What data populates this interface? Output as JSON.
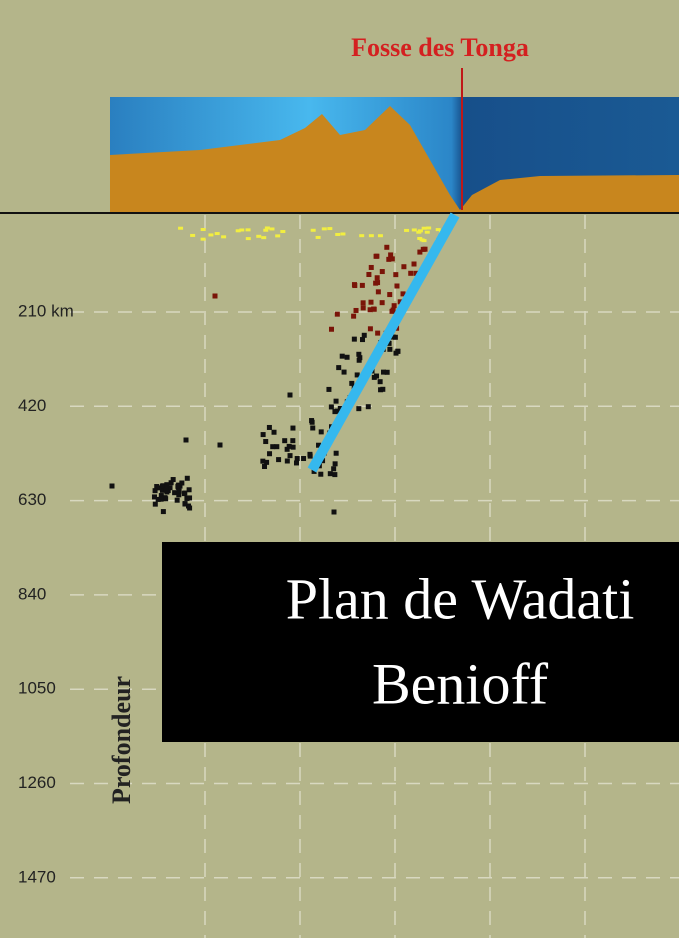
{
  "title": "Fosse des Tonga",
  "depth_ticks": [
    "210 km",
    "420",
    "630",
    "840",
    "1050",
    "1260",
    "1470"
  ],
  "axis_label": "Profondeur",
  "caption": {
    "line1": "Plan de Wadati",
    "line2": "Benioff"
  }
}
